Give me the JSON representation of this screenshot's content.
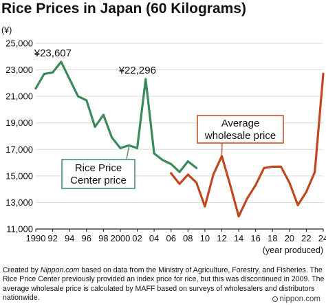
{
  "chart_data": {
    "type": "line",
    "title": "Rice Prices in Japan (60 Kilograms)",
    "y_unit": "(¥)",
    "x_unit": "(year produced)",
    "xlim": [
      1990,
      2024
    ],
    "ylim": [
      11000,
      25000
    ],
    "y_ticks": [
      11000,
      13000,
      15000,
      17000,
      19000,
      21000,
      23000,
      25000
    ],
    "y_tick_labels": [
      "11,000",
      "13,000",
      "15,000",
      "17,000",
      "19,000",
      "21,000",
      "23,000",
      "25,000"
    ],
    "x_ticks": [
      1990,
      1992,
      1994,
      1996,
      1998,
      2000,
      2002,
      2004,
      2006,
      2008,
      2010,
      2012,
      2014,
      2016,
      2018,
      2020,
      2022,
      2024
    ],
    "x_tick_labels": [
      "1990",
      "92",
      "94",
      "96",
      "98",
      "2000",
      "02",
      "04",
      "06",
      "08",
      "10",
      "12",
      "14",
      "16",
      "18",
      "20",
      "22",
      "24"
    ],
    "grid": true,
    "series": [
      {
        "name": "Rice Price Center price",
        "label_lines": [
          "Rice Price",
          "Center price"
        ],
        "color": "#3a8a5c",
        "x": [
          1990,
          1991,
          1992,
          1993,
          1994,
          1995,
          1996,
          1997,
          1998,
          1999,
          2000,
          2001,
          2002,
          2003,
          2004,
          2005,
          2006,
          2007,
          2008,
          2009
        ],
        "values": [
          21600,
          22700,
          22800,
          23607,
          22300,
          21000,
          20700,
          18700,
          19600,
          17900,
          17100,
          17300,
          17100,
          22296,
          16700,
          16200,
          15900,
          15300,
          16100,
          15600
        ]
      },
      {
        "name": "Average wholesale price",
        "label_lines": [
          "Average",
          "wholesale price"
        ],
        "color": "#c0481f",
        "x": [
          2006,
          2007,
          2008,
          2009,
          2010,
          2011,
          2012,
          2013,
          2014,
          2015,
          2016,
          2017,
          2018,
          2019,
          2020,
          2021,
          2022,
          2023,
          2024
        ],
        "values": [
          15200,
          14400,
          15100,
          14500,
          12700,
          15100,
          16500,
          14300,
          11950,
          13300,
          14300,
          15600,
          15700,
          15700,
          14500,
          12800,
          13800,
          15300,
          22700
        ]
      }
    ],
    "annotations": [
      {
        "text": "¥23,607",
        "x": 1993,
        "y": 23607
      },
      {
        "text": "¥22,296",
        "x": 2003,
        "y": 22296
      }
    ]
  },
  "footnote": {
    "before": "Created by ",
    "source": "Nippon.com",
    "after": " based on data from the Ministry of Agriculture, Forestry, and Fisheries. The Rice Price Center previously provided an index price for rice, but this was discontinued in 2009. The average wholesale price is calculated by MAFF based on surveys of wholesalers and distributors nationwide."
  },
  "brand": "nippon.com"
}
